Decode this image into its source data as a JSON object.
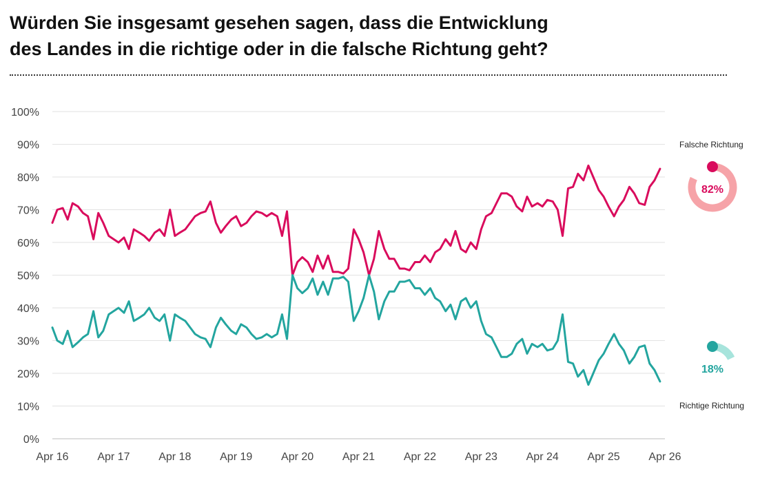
{
  "title_line1": "Würden Sie insgesamt gesehen sagen, dass die Entwicklung",
  "title_line2": "des Landes in die richtige oder in die falsche Richtung geht?",
  "chart_data": {
    "type": "line",
    "y_ticks": [
      "0%",
      "10%",
      "20%",
      "30%",
      "40%",
      "50%",
      "60%",
      "70%",
      "80%",
      "90%",
      "100%"
    ],
    "x_ticks": [
      "Apr 16",
      "Apr 17",
      "Apr 18",
      "Apr 19",
      "Apr 20",
      "Apr 21",
      "Apr 22",
      "Apr 23",
      "Apr 24",
      "Apr 25",
      "Apr 26"
    ],
    "xlim": [
      2016.25,
      2026.25
    ],
    "ylim": [
      0,
      100
    ],
    "grid": true,
    "series": [
      {
        "name": "Falsche Richtung",
        "color": "#d90b5c",
        "final_label": "82%",
        "final_value": 82,
        "values": [
          [
            2016.25,
            66
          ],
          [
            2016.33,
            70
          ],
          [
            2016.42,
            70.5
          ],
          [
            2016.5,
            67
          ],
          [
            2016.58,
            72
          ],
          [
            2016.67,
            71
          ],
          [
            2016.75,
            69
          ],
          [
            2016.83,
            68
          ],
          [
            2016.92,
            61
          ],
          [
            2017.0,
            69
          ],
          [
            2017.08,
            66
          ],
          [
            2017.17,
            62
          ],
          [
            2017.25,
            61
          ],
          [
            2017.33,
            60
          ],
          [
            2017.42,
            61.5
          ],
          [
            2017.5,
            58
          ],
          [
            2017.58,
            64
          ],
          [
            2017.67,
            63
          ],
          [
            2017.75,
            62
          ],
          [
            2017.83,
            60.5
          ],
          [
            2017.92,
            63
          ],
          [
            2018.0,
            64
          ],
          [
            2018.08,
            62
          ],
          [
            2018.17,
            70
          ],
          [
            2018.25,
            62
          ],
          [
            2018.33,
            63
          ],
          [
            2018.42,
            64
          ],
          [
            2018.5,
            66
          ],
          [
            2018.58,
            68
          ],
          [
            2018.67,
            69
          ],
          [
            2018.75,
            69.5
          ],
          [
            2018.83,
            72.5
          ],
          [
            2018.92,
            66
          ],
          [
            2019.0,
            63
          ],
          [
            2019.08,
            65
          ],
          [
            2019.17,
            67
          ],
          [
            2019.25,
            68
          ],
          [
            2019.33,
            65
          ],
          [
            2019.42,
            66
          ],
          [
            2019.5,
            68
          ],
          [
            2019.58,
            69.5
          ],
          [
            2019.67,
            69
          ],
          [
            2019.75,
            68
          ],
          [
            2019.83,
            69
          ],
          [
            2019.92,
            68
          ],
          [
            2020.0,
            62
          ],
          [
            2020.08,
            69.5
          ],
          [
            2020.17,
            50
          ],
          [
            2020.25,
            54
          ],
          [
            2020.33,
            55.5
          ],
          [
            2020.42,
            54
          ],
          [
            2020.5,
            51
          ],
          [
            2020.58,
            56
          ],
          [
            2020.67,
            52
          ],
          [
            2020.75,
            56
          ],
          [
            2020.83,
            51
          ],
          [
            2020.92,
            51
          ],
          [
            2021.0,
            50.5
          ],
          [
            2021.08,
            52
          ],
          [
            2021.17,
            64
          ],
          [
            2021.25,
            61
          ],
          [
            2021.33,
            57
          ],
          [
            2021.42,
            50
          ],
          [
            2021.5,
            55
          ],
          [
            2021.58,
            63.5
          ],
          [
            2021.67,
            58
          ],
          [
            2021.75,
            55
          ],
          [
            2021.83,
            55
          ],
          [
            2021.92,
            52
          ],
          [
            2022.0,
            52
          ],
          [
            2022.08,
            51.5
          ],
          [
            2022.17,
            54
          ],
          [
            2022.25,
            54
          ],
          [
            2022.33,
            56
          ],
          [
            2022.42,
            54
          ],
          [
            2022.5,
            57
          ],
          [
            2022.58,
            58
          ],
          [
            2022.67,
            61
          ],
          [
            2022.75,
            59
          ],
          [
            2022.83,
            63.5
          ],
          [
            2022.92,
            58
          ],
          [
            2023.0,
            57
          ],
          [
            2023.08,
            60
          ],
          [
            2023.17,
            58
          ],
          [
            2023.25,
            64
          ],
          [
            2023.33,
            68
          ],
          [
            2023.42,
            69
          ],
          [
            2023.5,
            72
          ],
          [
            2023.58,
            75
          ],
          [
            2023.67,
            75
          ],
          [
            2023.75,
            74
          ],
          [
            2023.83,
            71
          ],
          [
            2023.92,
            69.5
          ],
          [
            2024.0,
            74
          ],
          [
            2024.08,
            71
          ],
          [
            2024.17,
            72
          ],
          [
            2024.25,
            71
          ],
          [
            2024.33,
            73
          ],
          [
            2024.42,
            72.5
          ],
          [
            2024.5,
            70
          ],
          [
            2024.58,
            62
          ],
          [
            2024.67,
            76.5
          ],
          [
            2024.75,
            77
          ],
          [
            2024.83,
            81
          ],
          [
            2024.92,
            79
          ],
          [
            2025.0,
            83.5
          ],
          [
            2025.08,
            80
          ],
          [
            2025.17,
            76
          ],
          [
            2025.25,
            74
          ],
          [
            2025.33,
            71
          ],
          [
            2025.42,
            68
          ],
          [
            2025.5,
            71
          ],
          [
            2025.58,
            73
          ],
          [
            2025.67,
            77
          ],
          [
            2025.75,
            75
          ],
          [
            2025.83,
            72
          ],
          [
            2025.92,
            71.5
          ],
          [
            2026.0,
            77
          ],
          [
            2026.08,
            79
          ],
          [
            2026.17,
            82.5
          ]
        ]
      },
      {
        "name": "Richtige Richtung",
        "color": "#23a59f",
        "final_label": "18%",
        "final_value": 18,
        "values": [
          [
            2016.25,
            34
          ],
          [
            2016.33,
            30
          ],
          [
            2016.42,
            29
          ],
          [
            2016.5,
            33
          ],
          [
            2016.58,
            28
          ],
          [
            2016.67,
            29.5
          ],
          [
            2016.75,
            31
          ],
          [
            2016.83,
            32
          ],
          [
            2016.92,
            39
          ],
          [
            2017.0,
            31
          ],
          [
            2017.08,
            33
          ],
          [
            2017.17,
            38
          ],
          [
            2017.25,
            39
          ],
          [
            2017.33,
            40
          ],
          [
            2017.42,
            38.5
          ],
          [
            2017.5,
            42
          ],
          [
            2017.58,
            36
          ],
          [
            2017.67,
            37
          ],
          [
            2017.75,
            38
          ],
          [
            2017.83,
            40
          ],
          [
            2017.92,
            37
          ],
          [
            2018.0,
            36
          ],
          [
            2018.08,
            38
          ],
          [
            2018.17,
            30
          ],
          [
            2018.25,
            38
          ],
          [
            2018.33,
            37
          ],
          [
            2018.42,
            36
          ],
          [
            2018.5,
            34
          ],
          [
            2018.58,
            32
          ],
          [
            2018.67,
            31
          ],
          [
            2018.75,
            30.5
          ],
          [
            2018.83,
            28
          ],
          [
            2018.92,
            34
          ],
          [
            2019.0,
            37
          ],
          [
            2019.08,
            35
          ],
          [
            2019.17,
            33
          ],
          [
            2019.25,
            32
          ],
          [
            2019.33,
            35
          ],
          [
            2019.42,
            34
          ],
          [
            2019.5,
            32
          ],
          [
            2019.58,
            30.5
          ],
          [
            2019.67,
            31
          ],
          [
            2019.75,
            32
          ],
          [
            2019.83,
            31
          ],
          [
            2019.92,
            32
          ],
          [
            2020.0,
            38
          ],
          [
            2020.08,
            30.5
          ],
          [
            2020.17,
            50
          ],
          [
            2020.25,
            46
          ],
          [
            2020.33,
            44.5
          ],
          [
            2020.42,
            46
          ],
          [
            2020.5,
            49
          ],
          [
            2020.58,
            44
          ],
          [
            2020.67,
            48
          ],
          [
            2020.75,
            44
          ],
          [
            2020.83,
            49
          ],
          [
            2020.92,
            49
          ],
          [
            2021.0,
            49.5
          ],
          [
            2021.08,
            48
          ],
          [
            2021.17,
            36
          ],
          [
            2021.25,
            39
          ],
          [
            2021.33,
            43
          ],
          [
            2021.42,
            50
          ],
          [
            2021.5,
            45
          ],
          [
            2021.58,
            36.5
          ],
          [
            2021.67,
            42
          ],
          [
            2021.75,
            45
          ],
          [
            2021.83,
            45
          ],
          [
            2021.92,
            48
          ],
          [
            2022.0,
            48
          ],
          [
            2022.08,
            48.5
          ],
          [
            2022.17,
            46
          ],
          [
            2022.25,
            46
          ],
          [
            2022.33,
            44
          ],
          [
            2022.42,
            46
          ],
          [
            2022.5,
            43
          ],
          [
            2022.58,
            42
          ],
          [
            2022.67,
            39
          ],
          [
            2022.75,
            41
          ],
          [
            2022.83,
            36.5
          ],
          [
            2022.92,
            42
          ],
          [
            2023.0,
            43
          ],
          [
            2023.08,
            40
          ],
          [
            2023.17,
            42
          ],
          [
            2023.25,
            36
          ],
          [
            2023.33,
            32
          ],
          [
            2023.42,
            31
          ],
          [
            2023.5,
            28
          ],
          [
            2023.58,
            25
          ],
          [
            2023.67,
            25
          ],
          [
            2023.75,
            26
          ],
          [
            2023.83,
            29
          ],
          [
            2023.92,
            30.5
          ],
          [
            2024.0,
            26
          ],
          [
            2024.08,
            29
          ],
          [
            2024.17,
            28
          ],
          [
            2024.25,
            29
          ],
          [
            2024.33,
            27
          ],
          [
            2024.42,
            27.5
          ],
          [
            2024.5,
            30
          ],
          [
            2024.58,
            38
          ],
          [
            2024.67,
            23.5
          ],
          [
            2024.75,
            23
          ],
          [
            2024.83,
            19
          ],
          [
            2024.92,
            21
          ],
          [
            2025.0,
            16.5
          ],
          [
            2025.08,
            20
          ],
          [
            2025.17,
            24
          ],
          [
            2025.25,
            26
          ],
          [
            2025.33,
            29
          ],
          [
            2025.42,
            32
          ],
          [
            2025.5,
            29
          ],
          [
            2025.58,
            27
          ],
          [
            2025.67,
            23
          ],
          [
            2025.75,
            25
          ],
          [
            2025.83,
            28
          ],
          [
            2025.92,
            28.5
          ],
          [
            2026.0,
            23
          ],
          [
            2026.08,
            21
          ],
          [
            2026.17,
            17.5
          ]
        ]
      }
    ]
  }
}
